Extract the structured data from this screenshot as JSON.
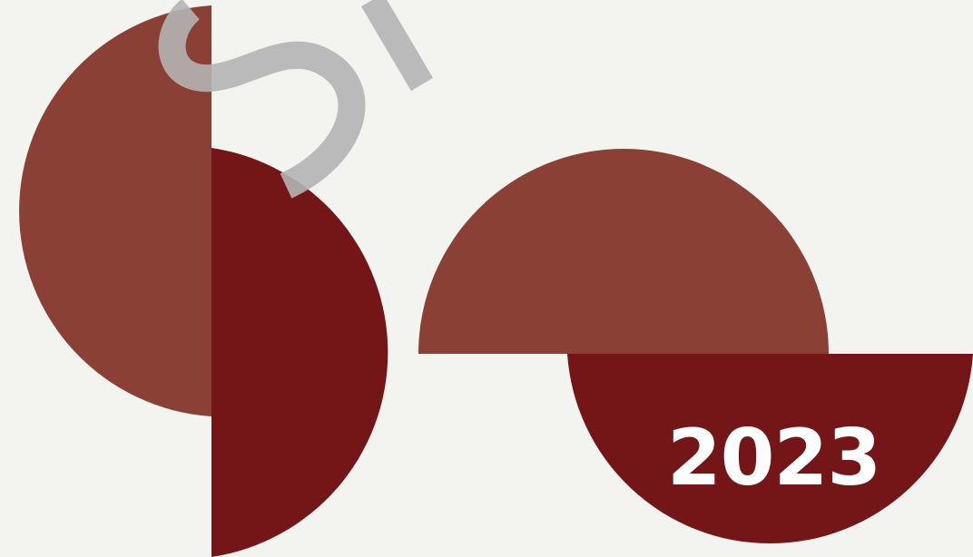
{
  "colors": {
    "background": "#f3f3ef",
    "terracotta": "#8a4034",
    "maroon": "#741517",
    "watermark": "#b4b4b4",
    "text": "#ffffff"
  },
  "year": "2023",
  "watermark_text": "S"
}
